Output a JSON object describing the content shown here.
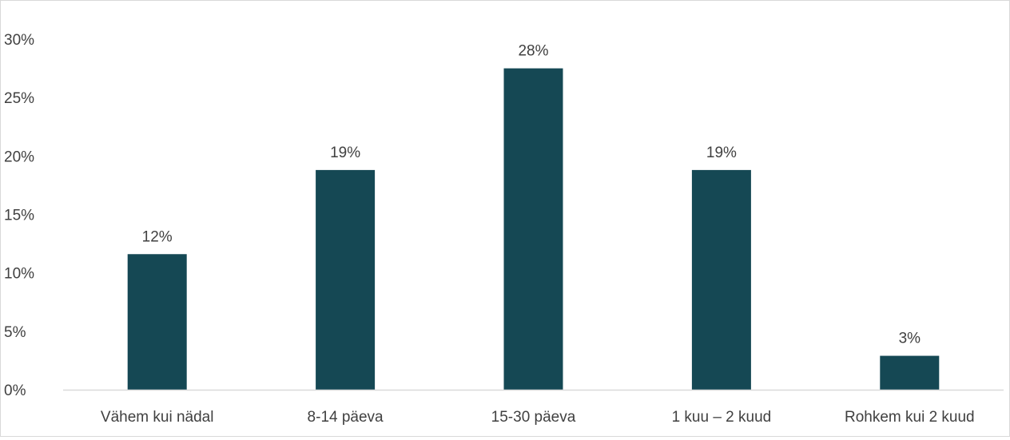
{
  "chart_data": {
    "type": "bar",
    "title": "",
    "xlabel": "",
    "ylabel": "",
    "categories": [
      "Vähem kui nädal",
      "8-14 päeva",
      "15-30 päeva",
      "1 kuu – 2 kuud",
      "Rohkem kui 2 kuud"
    ],
    "values": [
      11.6,
      18.8,
      27.5,
      18.8,
      2.9
    ],
    "data_labels": [
      "12%",
      "19%",
      "28%",
      "19%",
      "3%"
    ],
    "y_ticks": [
      0,
      5,
      10,
      15,
      20,
      25,
      30
    ],
    "y_tick_labels": [
      "0%",
      "5%",
      "10%",
      "15%",
      "20%",
      "25%",
      "30%"
    ],
    "ylim": [
      0,
      30
    ],
    "grid": false,
    "legend": "none",
    "colors": {
      "bar": "#154854",
      "axis": "#d9d9d9",
      "text": "#404040"
    }
  }
}
